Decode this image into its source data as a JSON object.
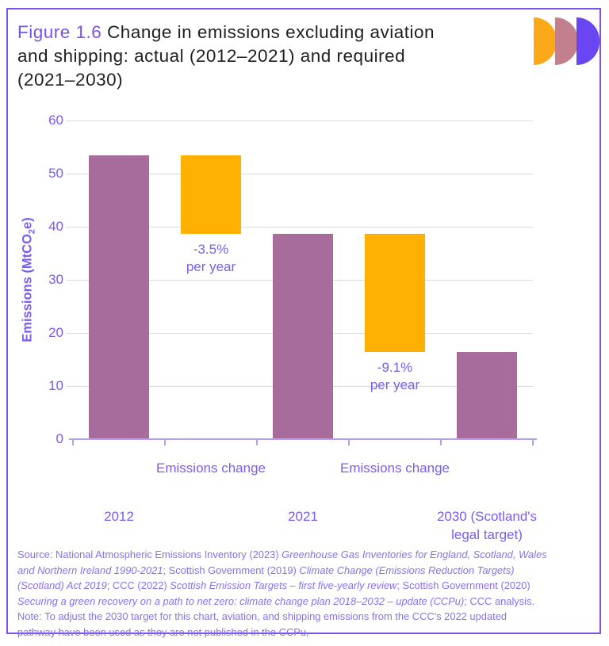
{
  "colors": {
    "border_purple": "#7b52ee",
    "accent_purple": "#7d5cf0",
    "title_accent": "#7a52e8",
    "text_dark": "#1f1f1f",
    "bar_purple": "#a76c9c",
    "bar_orange": "#ffb000",
    "gridline_gray": "#d9d9d9",
    "axis_line_purple": "#b3a0ef",
    "source_purple": "#8a70f0"
  },
  "header": {
    "title_lines": [
      [
        {
          "t": "Figure 1.6 ",
          "c": 1
        },
        {
          "t": "Change in emissions excluding aviation"
        }
      ],
      [
        {
          "t": "and shipping: actual (2012–2021) and required"
        }
      ],
      [
        {
          "t": "(2021–2030)"
        }
      ]
    ]
  },
  "logo": {
    "shapes": [
      {
        "name": "logo-disc-orange",
        "color": "#fba919"
      },
      {
        "name": "logo-disc-mauve",
        "color": "#c2808e"
      },
      {
        "name": "logo-disc-purple",
        "color": "#6a45f2"
      }
    ]
  },
  "chart_data": {
    "type": "bar",
    "subtype": "waterfall",
    "title": "Change in emissions excluding aviation and shipping: actual (2012–2021) and required (2021–2030)",
    "ylabel": "Emissions (MtCO2e)",
    "ylabel_segments": [
      {
        "t": "Emissions (MtCO"
      },
      {
        "t": "2",
        "sub": 1
      },
      {
        "t": "e)"
      }
    ],
    "xlabel": "",
    "ylim": [
      0,
      60
    ],
    "yticks": [
      0,
      10,
      20,
      30,
      40,
      50,
      60
    ],
    "grid": true,
    "legend": "none",
    "n_slots": 5,
    "categories": [
      "2012",
      "Emissions change",
      "2021",
      "Emissions change",
      "2030 (Scotland's legal target)"
    ],
    "bars": [
      {
        "slot": 0,
        "from": 0,
        "to": 53.5,
        "color": "purple",
        "name": "bar-2012-actual"
      },
      {
        "slot": 1,
        "from": 38.7,
        "to": 53.5,
        "color": "orange",
        "name": "bar-change-2012-2021",
        "annotation": "-3.5%\nper year"
      },
      {
        "slot": 2,
        "from": 0,
        "to": 38.7,
        "color": "purple",
        "name": "bar-2021-actual"
      },
      {
        "slot": 3,
        "from": 16.4,
        "to": 38.7,
        "color": "orange",
        "name": "bar-change-2021-2030",
        "annotation": "-9.1%\nper year"
      },
      {
        "slot": 4,
        "from": 0,
        "to": 16.4,
        "color": "purple",
        "name": "bar-2030-target"
      }
    ],
    "x_labels_row1": [
      {
        "slot": 1,
        "label": "Emissions change"
      },
      {
        "slot": 3,
        "label": "Emissions change"
      }
    ],
    "x_labels_row2": [
      {
        "slot": 0,
        "label": "2012"
      },
      {
        "slot": 2,
        "label": "2021"
      },
      {
        "slot": 4,
        "label": "2030 (Scotland's\nlegal target)"
      }
    ]
  },
  "source": {
    "lines": [
      [
        {
          "t": "Source: National Atmospheric Emissions Inventory (2023) "
        },
        {
          "t": "Greenhouse Gas Inventories for England, Scotland, Wales",
          "i": 1
        }
      ],
      [
        {
          "t": "and Northern Ireland 1990-2021",
          "i": 1
        },
        {
          "t": "; Scottish Government (2019) "
        },
        {
          "t": "Climate Change (Emissions Reduction Targets)",
          "i": 1
        }
      ],
      [
        {
          "t": "(Scotland) Act 2019",
          "i": 1
        },
        {
          "t": "; CCC (2022) "
        },
        {
          "t": "Scottish Emission Targets – first five-yearly review",
          "i": 1
        },
        {
          "t": "; Scottish Government (2020)"
        }
      ],
      [
        {
          "t": "Securing a green recovery on a path to net zero: climate change plan 2018–2032 – update (CCPu)",
          "i": 1
        },
        {
          "t": "; CCC analysis."
        }
      ],
      [
        {
          "t": "Note: To adjust the 2030 target for this chart, aviation, and shipping emissions from the CCC's 2022 updated"
        }
      ],
      [
        {
          "t": "pathway have been used as they are not published in the CCPu,"
        }
      ]
    ]
  }
}
